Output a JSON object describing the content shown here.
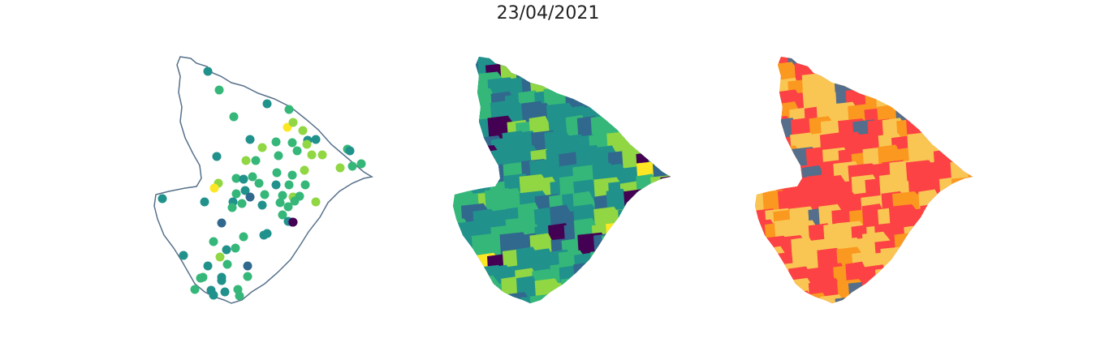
{
  "title": "23/04/2021",
  "colors": {
    "outline": "#56718a",
    "viridis": [
      "#440154",
      "#31688e",
      "#21918c",
      "#35b779",
      "#90d743",
      "#fde725"
    ],
    "risk": [
      "#f9c653",
      "#fb9820",
      "#fc4244",
      "#546e8c"
    ]
  },
  "panels": [
    {
      "kind": "station-points-on-outline"
    },
    {
      "kind": "municipality-choropleth-viridis"
    },
    {
      "kind": "municipality-choropleth-risk"
    }
  ]
}
